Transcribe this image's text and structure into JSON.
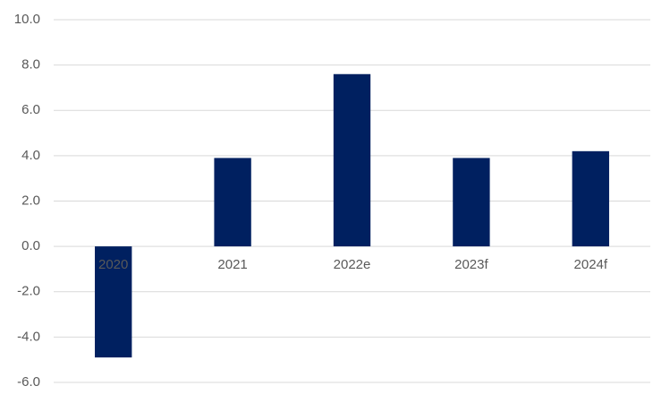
{
  "chart_data": {
    "type": "bar",
    "categories": [
      "2020",
      "2021",
      "2022e",
      "2023f",
      "2024f"
    ],
    "values": [
      -4.9,
      3.9,
      7.6,
      3.9,
      4.2
    ],
    "color": "#002060",
    "ylim": [
      -6,
      10
    ],
    "yticks": [
      {
        "value": -6,
        "label": "-6.0"
      },
      {
        "value": -4,
        "label": "-4.0"
      },
      {
        "value": -2,
        "label": "-2.0"
      },
      {
        "value": 0,
        "label": "0.0"
      },
      {
        "value": 2,
        "label": "2.0"
      },
      {
        "value": 4,
        "label": "4.0"
      },
      {
        "value": 6,
        "label": "6.0"
      },
      {
        "value": 8,
        "label": "8.0"
      },
      {
        "value": 10,
        "label": "10.0"
      }
    ],
    "grid": true
  }
}
